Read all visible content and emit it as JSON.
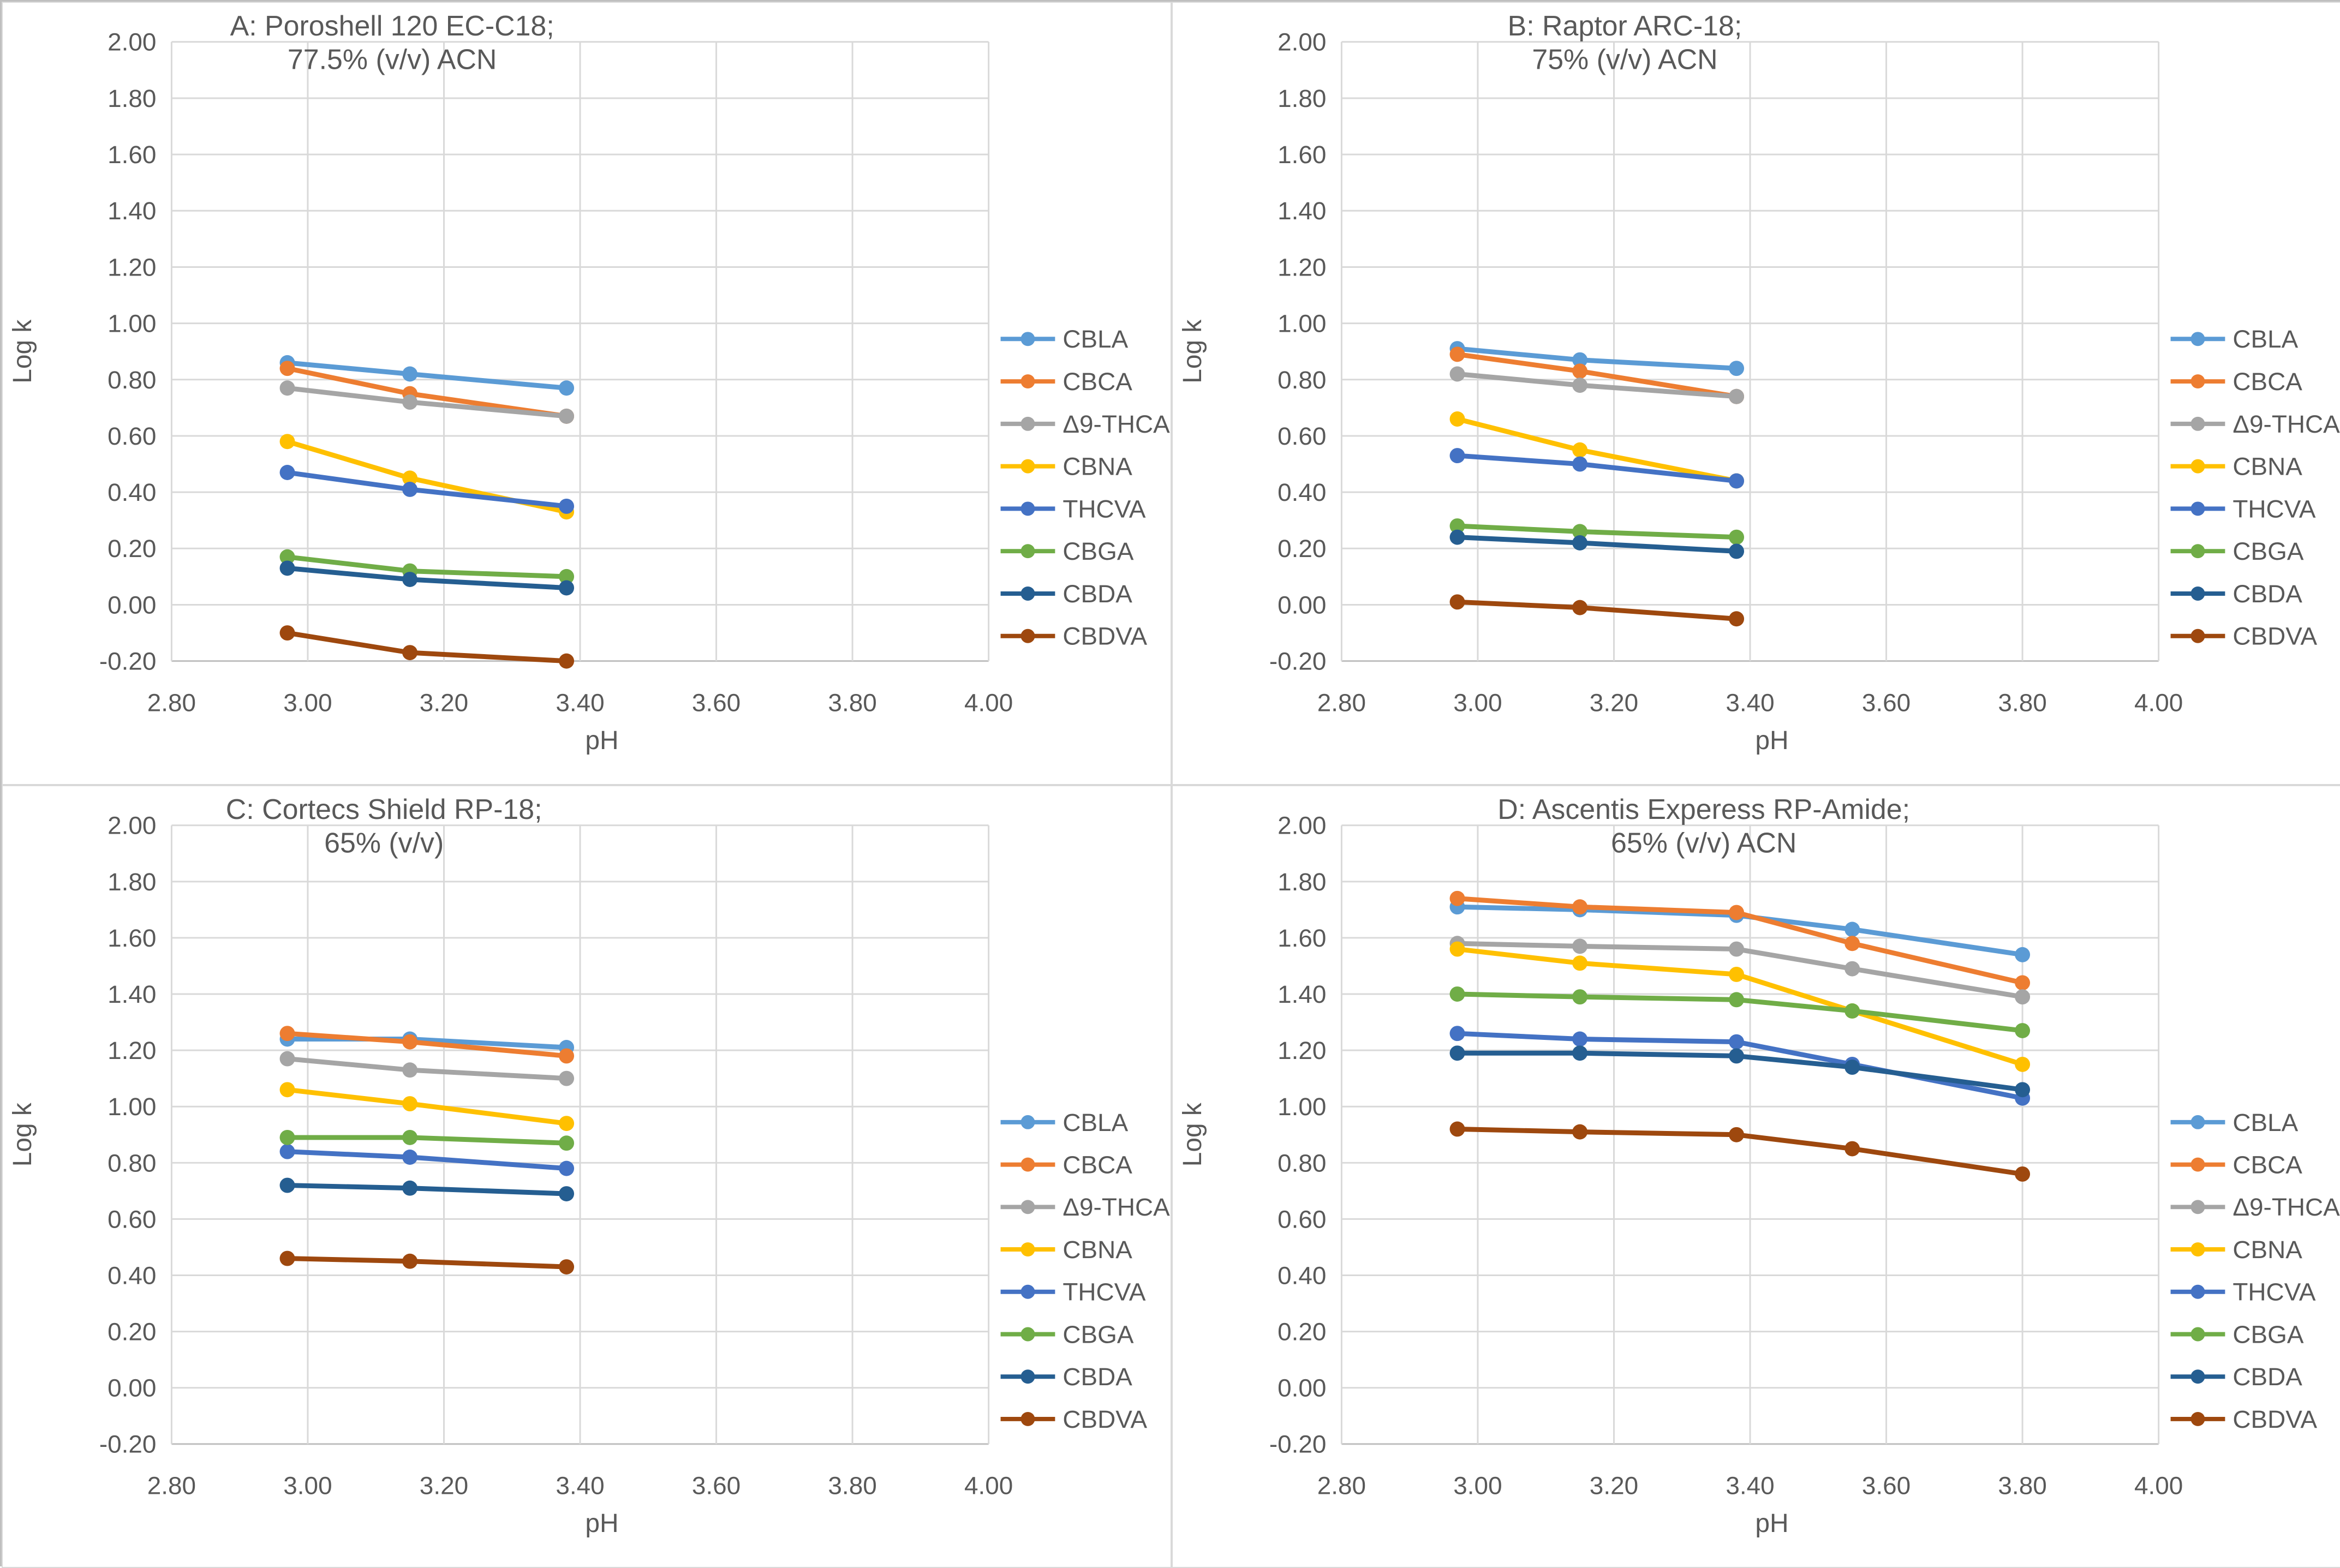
{
  "figure": {
    "y_axis_label": "Log k",
    "x_axis_label": "pH",
    "text_color": "#595959",
    "gridline_color": "#D9D9D9",
    "axis_line_color": "#BFBFBF",
    "series_colors": {
      "CBLA": "#5B9BD5",
      "CBCA": "#ED7D31",
      "Δ9-THCA": "#A5A5A5",
      "CBNA": "#FFC000",
      "THCVA": "#4472C4",
      "CBGA": "#70AD47",
      "CBDA": "#255E91",
      "CBDVA": "#9E480E"
    }
  },
  "chart_data": [
    {
      "type": "line",
      "panel_id": "panel-a",
      "title_line1": "A: Poroshell 120 EC-C18;",
      "title_line2": "77.5% (v/v) ACN",
      "xlabel": "pH",
      "ylabel": "Log k",
      "xlim": [
        2.8,
        4.0
      ],
      "ylim": [
        -0.2,
        2.0
      ],
      "x_ticks": [
        "2.80",
        "3.00",
        "3.20",
        "3.40",
        "3.60",
        "3.80",
        "4.00"
      ],
      "y_ticks": [
        "2.00",
        "1.80",
        "1.60",
        "1.40",
        "1.20",
        "1.00",
        "0.80",
        "0.60",
        "0.40",
        "0.20",
        "0.00",
        "-0.20"
      ],
      "grid": true,
      "legend_position": "right",
      "x": [
        2.97,
        3.15,
        3.38
      ],
      "series": [
        {
          "name": "CBLA",
          "color": "#5B9BD5",
          "values": [
            0.86,
            0.82,
            0.77
          ]
        },
        {
          "name": "CBCA",
          "color": "#ED7D31",
          "values": [
            0.84,
            0.75,
            0.67
          ]
        },
        {
          "name": "Δ9-THCA",
          "color": "#A5A5A5",
          "values": [
            0.77,
            0.72,
            0.67
          ]
        },
        {
          "name": "CBNA",
          "color": "#FFC000",
          "values": [
            0.58,
            0.45,
            0.33
          ]
        },
        {
          "name": "THCVA",
          "color": "#4472C4",
          "values": [
            0.47,
            0.41,
            0.35
          ]
        },
        {
          "name": "CBGA",
          "color": "#70AD47",
          "values": [
            0.17,
            0.12,
            0.1
          ]
        },
        {
          "name": "CBDA",
          "color": "#255E91",
          "values": [
            0.13,
            0.09,
            0.06
          ]
        },
        {
          "name": "CBDVA",
          "color": "#9E480E",
          "values": [
            -0.1,
            -0.17,
            -0.2
          ]
        }
      ]
    },
    {
      "type": "line",
      "panel_id": "panel-b",
      "title_line1": "B: Raptor ARC-18;",
      "title_line2": "75% (v/v) ACN",
      "xlabel": "pH",
      "ylabel": "Log k",
      "xlim": [
        2.8,
        4.0
      ],
      "ylim": [
        -0.2,
        2.0
      ],
      "x_ticks": [
        "2.80",
        "3.00",
        "3.20",
        "3.40",
        "3.60",
        "3.80",
        "4.00"
      ],
      "y_ticks": [
        "2.00",
        "1.80",
        "1.60",
        "1.40",
        "1.20",
        "1.00",
        "0.80",
        "0.60",
        "0.40",
        "0.20",
        "0.00",
        "-0.20"
      ],
      "grid": true,
      "legend_position": "right",
      "x": [
        2.97,
        3.15,
        3.38
      ],
      "series": [
        {
          "name": "CBLA",
          "color": "#5B9BD5",
          "values": [
            0.91,
            0.87,
            0.84
          ]
        },
        {
          "name": "CBCA",
          "color": "#ED7D31",
          "values": [
            0.89,
            0.83,
            0.74
          ]
        },
        {
          "name": "Δ9-THCA",
          "color": "#A5A5A5",
          "values": [
            0.82,
            0.78,
            0.74
          ]
        },
        {
          "name": "CBNA",
          "color": "#FFC000",
          "values": [
            0.66,
            0.55,
            0.44
          ]
        },
        {
          "name": "THCVA",
          "color": "#4472C4",
          "values": [
            0.53,
            0.5,
            0.44
          ]
        },
        {
          "name": "CBGA",
          "color": "#70AD47",
          "values": [
            0.28,
            0.26,
            0.24
          ]
        },
        {
          "name": "CBDA",
          "color": "#255E91",
          "values": [
            0.24,
            0.22,
            0.19
          ]
        },
        {
          "name": "CBDVA",
          "color": "#9E480E",
          "values": [
            0.01,
            -0.01,
            -0.05
          ]
        }
      ]
    },
    {
      "type": "line",
      "panel_id": "panel-c",
      "title_line1": "C: Cortecs Shield RP-18;",
      "title_line2": "65% (v/v)",
      "xlabel": "pH",
      "ylabel": "Log k",
      "xlim": [
        2.8,
        4.0
      ],
      "ylim": [
        -0.2,
        2.0
      ],
      "x_ticks": [
        "2.80",
        "3.00",
        "3.20",
        "3.40",
        "3.60",
        "3.80",
        "4.00"
      ],
      "y_ticks": [
        "2.00",
        "1.80",
        "1.60",
        "1.40",
        "1.20",
        "1.00",
        "0.80",
        "0.60",
        "0.40",
        "0.20",
        "0.00",
        "-0.20"
      ],
      "grid": true,
      "legend_position": "right",
      "x": [
        2.97,
        3.15,
        3.38
      ],
      "series": [
        {
          "name": "CBLA",
          "color": "#5B9BD5",
          "values": [
            1.24,
            1.24,
            1.21
          ]
        },
        {
          "name": "CBCA",
          "color": "#ED7D31",
          "values": [
            1.26,
            1.23,
            1.18
          ]
        },
        {
          "name": "Δ9-THCA",
          "color": "#A5A5A5",
          "values": [
            1.17,
            1.13,
            1.1
          ]
        },
        {
          "name": "CBNA",
          "color": "#FFC000",
          "values": [
            1.06,
            1.01,
            0.94
          ]
        },
        {
          "name": "THCVA",
          "color": "#4472C4",
          "values": [
            0.84,
            0.82,
            0.78
          ]
        },
        {
          "name": "CBGA",
          "color": "#70AD47",
          "values": [
            0.89,
            0.89,
            0.87
          ]
        },
        {
          "name": "CBDA",
          "color": "#255E91",
          "values": [
            0.72,
            0.71,
            0.69
          ]
        },
        {
          "name": "CBDVA",
          "color": "#9E480E",
          "values": [
            0.46,
            0.45,
            0.43
          ]
        }
      ]
    },
    {
      "type": "line",
      "panel_id": "panel-d",
      "title_line1": "D: Ascentis Experess RP-Amide;",
      "title_line2": "65% (v/v) ACN",
      "xlabel": "pH",
      "ylabel": "Log k",
      "xlim": [
        2.8,
        4.0
      ],
      "ylim": [
        -0.2,
        2.0
      ],
      "x_ticks": [
        "2.80",
        "3.00",
        "3.20",
        "3.40",
        "3.60",
        "3.80",
        "4.00"
      ],
      "y_ticks": [
        "2.00",
        "1.80",
        "1.60",
        "1.40",
        "1.20",
        "1.00",
        "0.80",
        "0.60",
        "0.40",
        "0.20",
        "0.00",
        "-0.20"
      ],
      "grid": true,
      "legend_position": "right",
      "x": [
        2.97,
        3.15,
        3.38,
        3.55,
        3.8
      ],
      "series": [
        {
          "name": "CBLA",
          "color": "#5B9BD5",
          "values": [
            1.71,
            1.7,
            1.68,
            1.63,
            1.54
          ]
        },
        {
          "name": "CBCA",
          "color": "#ED7D31",
          "values": [
            1.74,
            1.71,
            1.69,
            1.58,
            1.44
          ]
        },
        {
          "name": "Δ9-THCA",
          "color": "#A5A5A5",
          "values": [
            1.58,
            1.57,
            1.56,
            1.49,
            1.39
          ]
        },
        {
          "name": "CBNA",
          "color": "#FFC000",
          "values": [
            1.56,
            1.51,
            1.47,
            1.34,
            1.15
          ]
        },
        {
          "name": "THCVA",
          "color": "#4472C4",
          "values": [
            1.26,
            1.24,
            1.23,
            1.15,
            1.03
          ]
        },
        {
          "name": "CBGA",
          "color": "#70AD47",
          "values": [
            1.4,
            1.39,
            1.38,
            1.34,
            1.27
          ]
        },
        {
          "name": "CBDA",
          "color": "#255E91",
          "values": [
            1.19,
            1.19,
            1.18,
            1.14,
            1.06
          ]
        },
        {
          "name": "CBDVA",
          "color": "#9E480E",
          "values": [
            0.92,
            0.91,
            0.9,
            0.85,
            0.76
          ]
        }
      ]
    }
  ]
}
